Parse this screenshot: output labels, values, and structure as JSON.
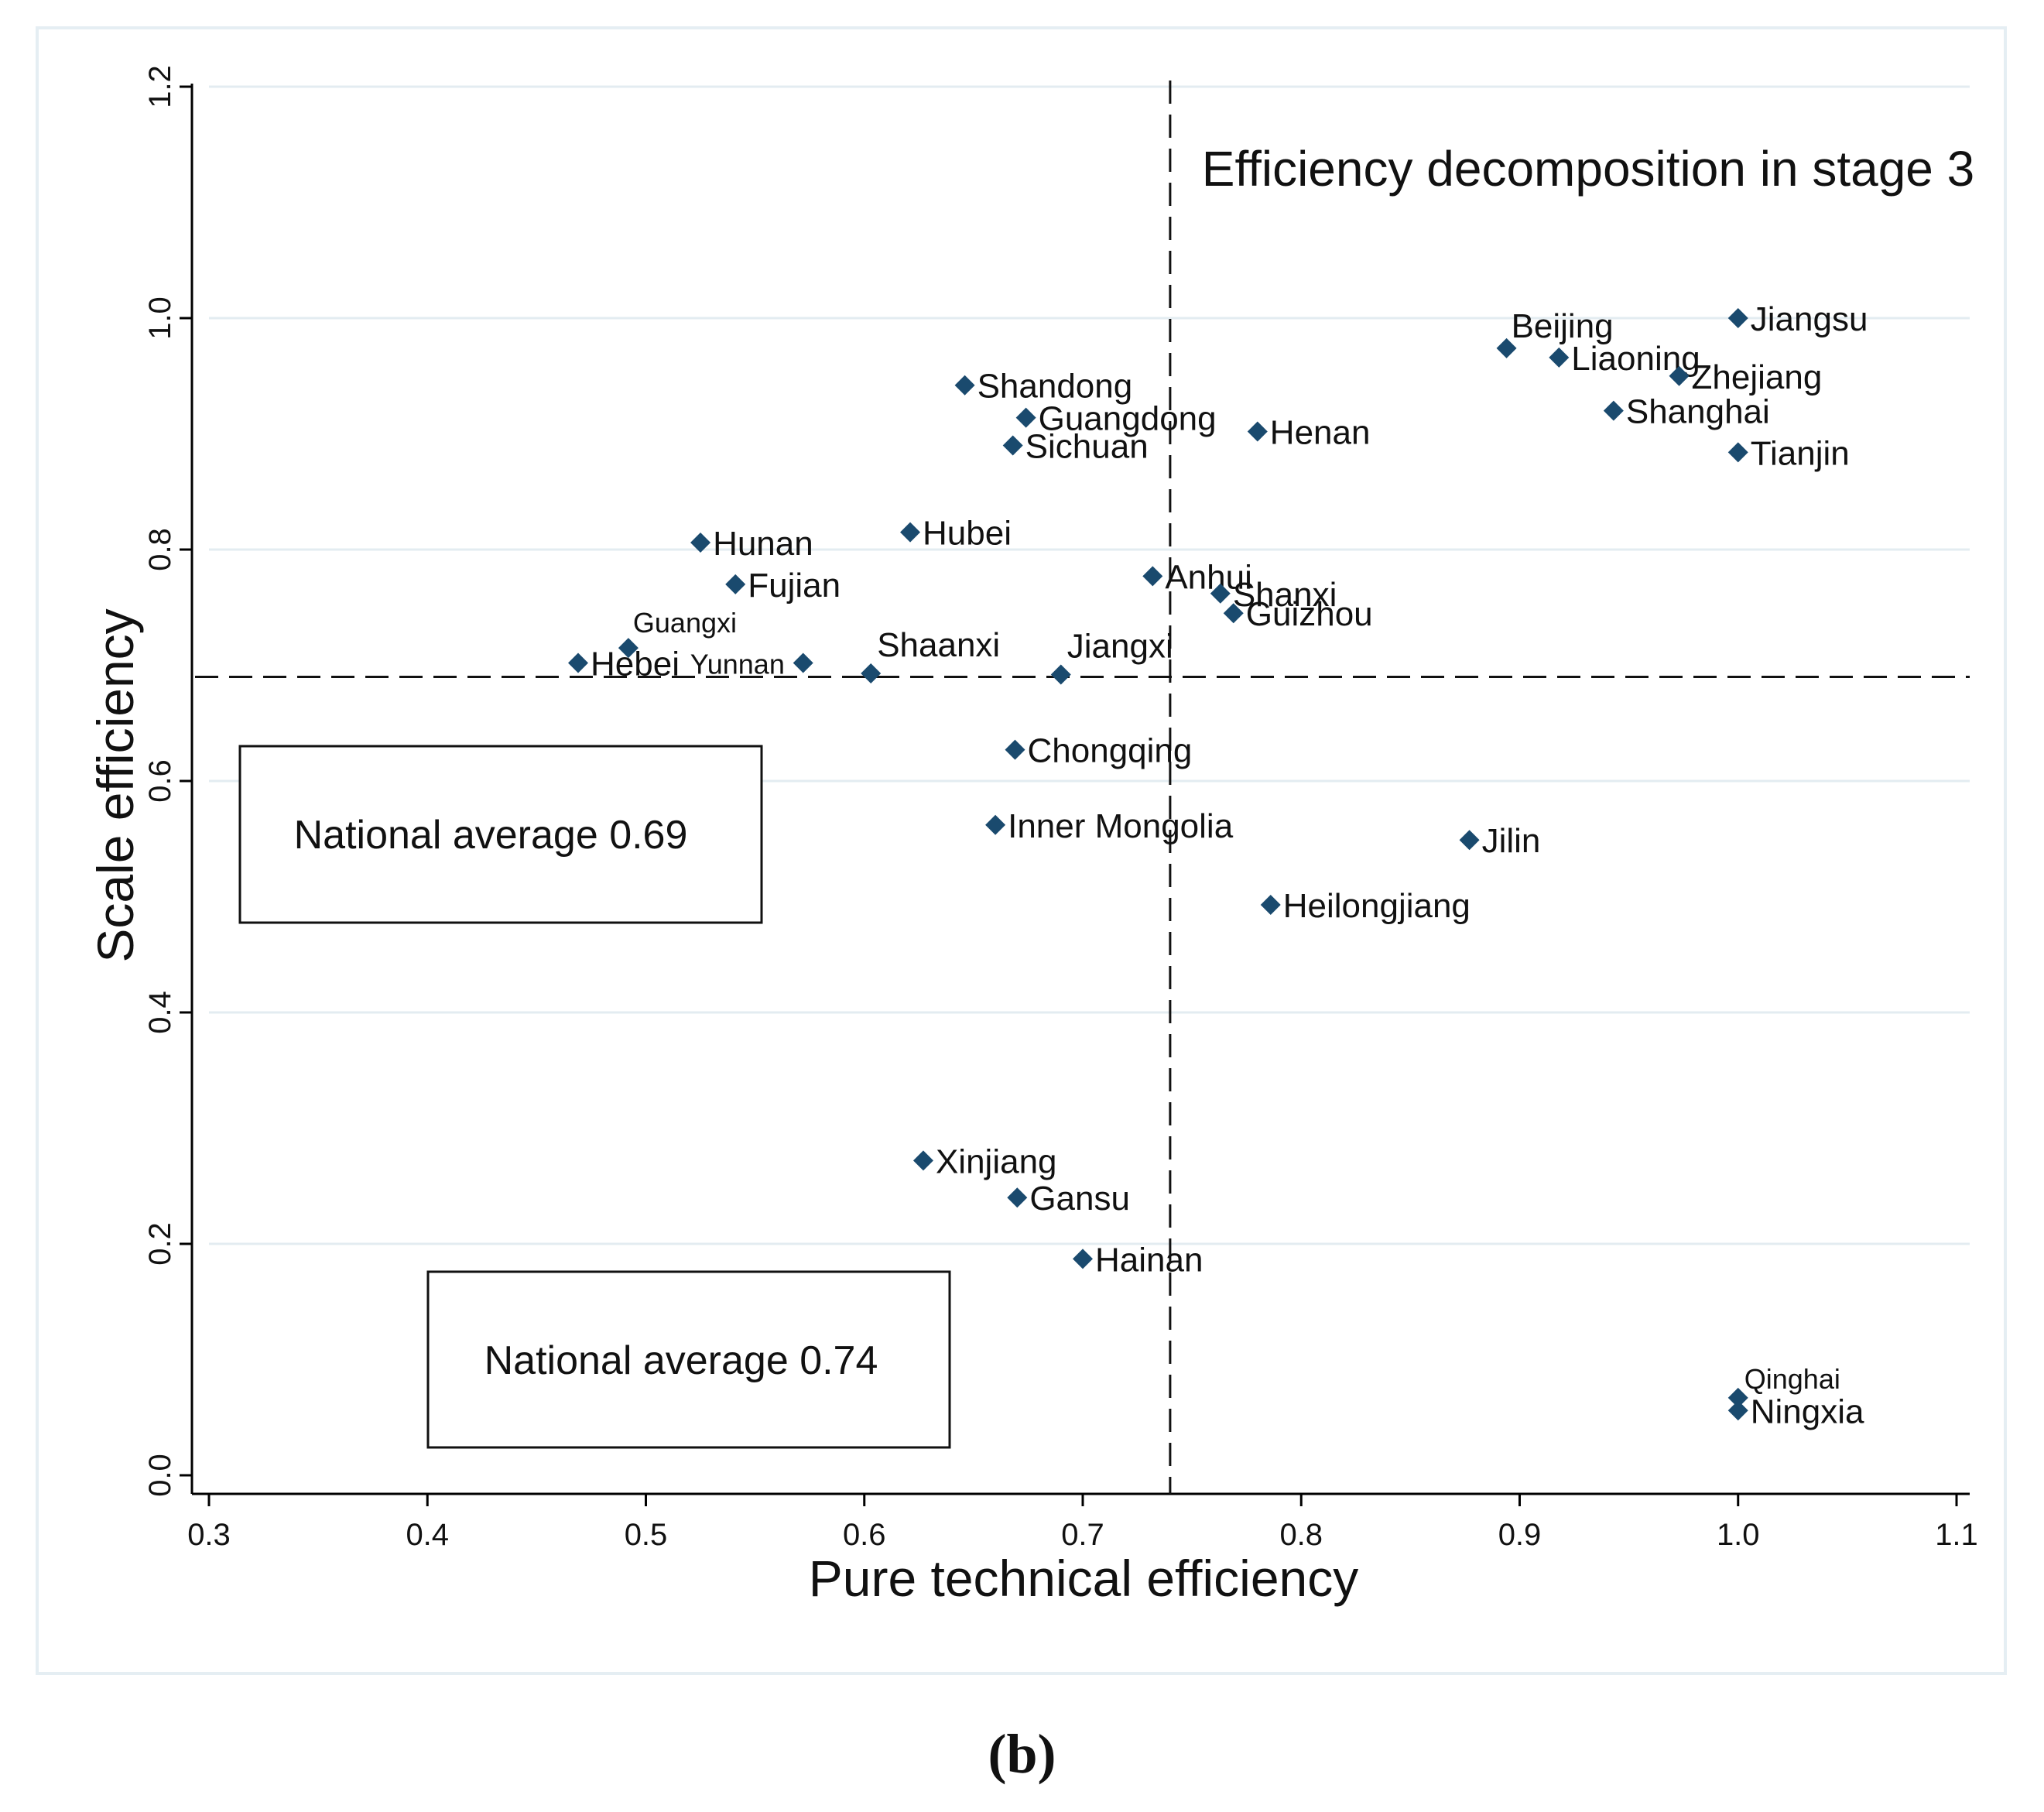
{
  "chart_data": {
    "type": "scatter",
    "title": "Efficiency decomposition in stage 3",
    "xlabel": "Pure technical efficiency",
    "ylabel": "Scale efficiency",
    "xlim": [
      0.3,
      1.1
    ],
    "ylim": [
      0.0,
      1.2
    ],
    "xticks": [
      "0.3",
      "0.4",
      "0.5",
      "0.6",
      "0.7",
      "0.8",
      "0.9",
      "1.0",
      "1.1"
    ],
    "yticks": [
      "0.0",
      "0.2",
      "0.4",
      "0.6",
      "0.8",
      "1.0",
      "1.2"
    ],
    "grid": "horizontal",
    "reference_lines": {
      "x": 0.74,
      "y": 0.69
    },
    "annotations": [
      "National average 0.69",
      "National average 0.74"
    ],
    "marker_color": "#1a4a6e",
    "marker": "diamond",
    "points": [
      {
        "label": "Jiangsu",
        "x": 1.0,
        "y": 1.0
      },
      {
        "label": "Beijing",
        "x": 0.894,
        "y": 0.974
      },
      {
        "label": "Liaoning",
        "x": 0.918,
        "y": 0.966
      },
      {
        "label": "Zhejiang",
        "x": 0.973,
        "y": 0.95
      },
      {
        "label": "Shanghai",
        "x": 0.943,
        "y": 0.92
      },
      {
        "label": "Tianjin",
        "x": 1.0,
        "y": 0.884
      },
      {
        "label": "Shandong",
        "x": 0.646,
        "y": 0.942
      },
      {
        "label": "Guangdong",
        "x": 0.674,
        "y": 0.914
      },
      {
        "label": "Sichuan",
        "x": 0.668,
        "y": 0.89
      },
      {
        "label": "Henan",
        "x": 0.78,
        "y": 0.902
      },
      {
        "label": "Hubei",
        "x": 0.621,
        "y": 0.815
      },
      {
        "label": "Hunan",
        "x": 0.525,
        "y": 0.806
      },
      {
        "label": "Fujian",
        "x": 0.541,
        "y": 0.77
      },
      {
        "label": "Anhui",
        "x": 0.732,
        "y": 0.777
      },
      {
        "label": "Shanxi",
        "x": 0.763,
        "y": 0.762
      },
      {
        "label": "Guizhou",
        "x": 0.769,
        "y": 0.745
      },
      {
        "label": "Guangxi",
        "x": 0.492,
        "y": 0.715
      },
      {
        "label": "Hebei",
        "x": 0.469,
        "y": 0.702
      },
      {
        "label": "Yunnan",
        "x": 0.572,
        "y": 0.702
      },
      {
        "label": "Shaanxi",
        "x": 0.603,
        "y": 0.693
      },
      {
        "label": "Jiangxi",
        "x": 0.69,
        "y": 0.692
      },
      {
        "label": "Chongqing",
        "x": 0.669,
        "y": 0.627
      },
      {
        "label": "Inner Mongolia",
        "x": 0.66,
        "y": 0.562
      },
      {
        "label": "Jilin",
        "x": 0.877,
        "y": 0.549
      },
      {
        "label": "Heilongjiang",
        "x": 0.786,
        "y": 0.493
      },
      {
        "label": "Xinjiang",
        "x": 0.627,
        "y": 0.272
      },
      {
        "label": "Gansu",
        "x": 0.67,
        "y": 0.24
      },
      {
        "label": "Hainan",
        "x": 0.7,
        "y": 0.187
      },
      {
        "label": "Qinghai",
        "x": 1.0,
        "y": 0.067
      },
      {
        "label": "Ningxia",
        "x": 1.0,
        "y": 0.056
      }
    ]
  },
  "caption": "(b)"
}
